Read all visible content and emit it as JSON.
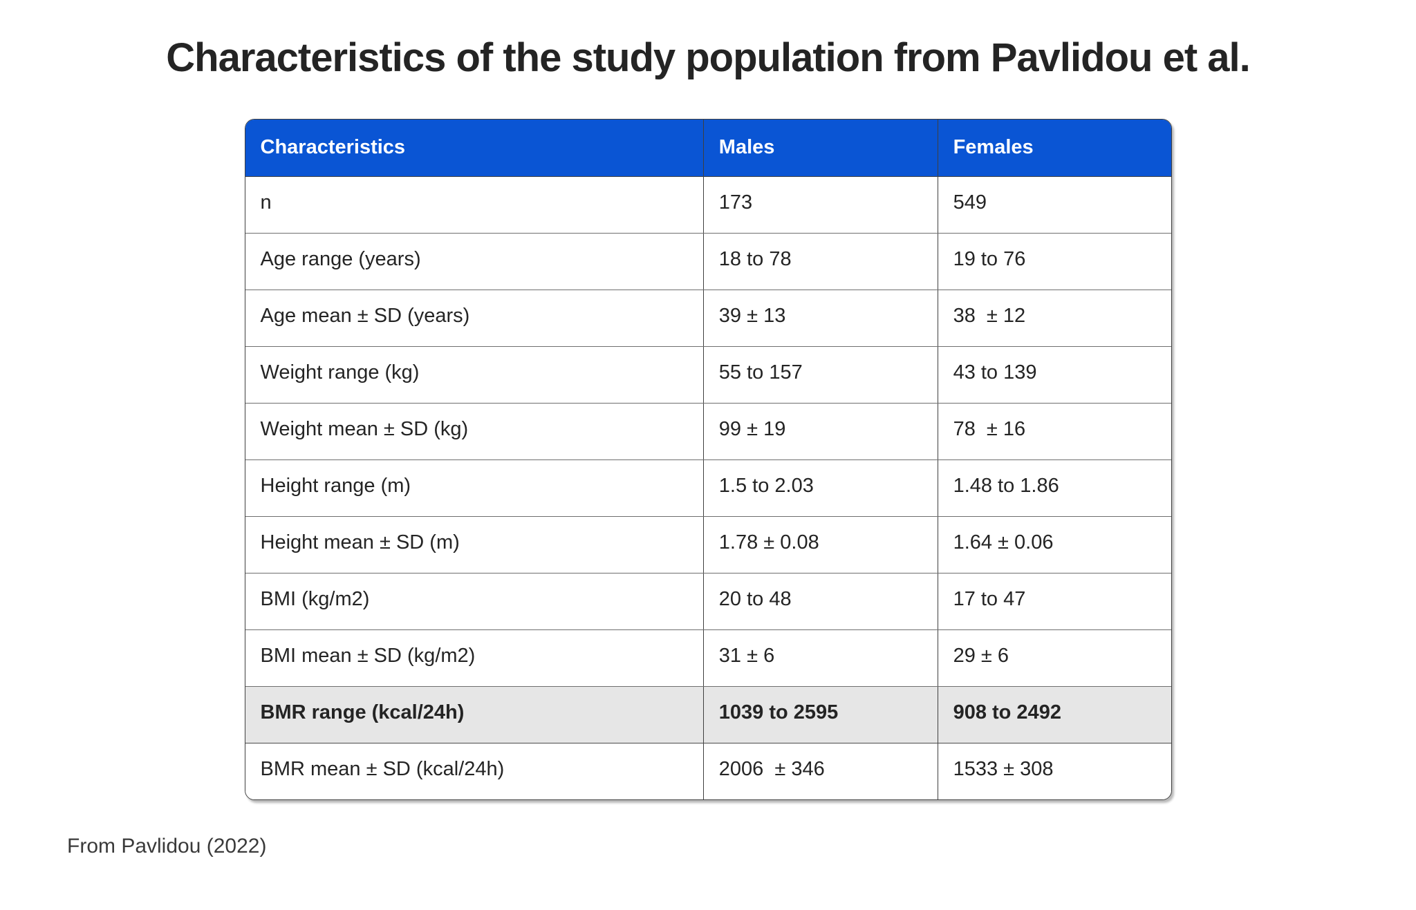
{
  "page": {
    "title": "Characteristics of the study population from Pavlidou et al.",
    "citation": "From Pavlidou (2022)"
  },
  "colors": {
    "header_bg": "#0a55d4",
    "header_text": "#ffffff",
    "highlight_row_bg": "#e6e6e6",
    "border_dark": "#3f3f3f",
    "border_light": "#6e6e6e",
    "text": "#242424"
  },
  "table": {
    "columns": [
      "Characteristics",
      "Males",
      "Females"
    ],
    "rows": [
      {
        "characteristic": "n",
        "males": "173",
        "females": "549",
        "highlight": false
      },
      {
        "characteristic": "Age range (years)",
        "males": "18 to 78",
        "females": "19 to 76",
        "highlight": false
      },
      {
        "characteristic": "Age mean ± SD (years)",
        "males": "39 ± 13",
        "females": "38  ± 12",
        "highlight": false
      },
      {
        "characteristic": "Weight range (kg)",
        "males": "55 to 157",
        "females": "43 to 139",
        "highlight": false
      },
      {
        "characteristic": "Weight mean ± SD (kg)",
        "males": "99 ± 19",
        "females": "78  ± 16",
        "highlight": false
      },
      {
        "characteristic": "Height range (m)",
        "males": "1.5 to 2.03",
        "females": "1.48 to 1.86",
        "highlight": false
      },
      {
        "characteristic": "Height mean ± SD (m)",
        "males": "1.78 ± 0.08",
        "females": "1.64 ± 0.06",
        "highlight": false
      },
      {
        "characteristic": "BMI (kg/m2)",
        "males": "20 to 48",
        "females": "17 to 47",
        "highlight": false
      },
      {
        "characteristic": "BMI mean ± SD (kg/m2)",
        "males": "31 ± 6",
        "females": "29 ± 6",
        "highlight": false
      },
      {
        "characteristic": "BMR range (kcal/24h)",
        "males": "1039 to 2595",
        "females": "908 to 2492",
        "highlight": true
      },
      {
        "characteristic": "BMR mean ± SD (kcal/24h)",
        "males": "2006  ± 346",
        "females": "1533 ± 308",
        "highlight": false
      }
    ]
  },
  "chart_data": {
    "type": "table",
    "title": "Characteristics of the study population from Pavlidou et al.",
    "columns": [
      "Characteristics",
      "Males",
      "Females"
    ],
    "rows": [
      [
        "n",
        "173",
        "549"
      ],
      [
        "Age range (years)",
        "18 to 78",
        "19 to 76"
      ],
      [
        "Age mean ± SD (years)",
        "39 ± 13",
        "38 ± 12"
      ],
      [
        "Weight range (kg)",
        "55 to 157",
        "43 to 139"
      ],
      [
        "Weight mean ± SD (kg)",
        "99 ± 19",
        "78 ± 16"
      ],
      [
        "Height range (m)",
        "1.5 to 2.03",
        "1.48 to 1.86"
      ],
      [
        "Height mean ± SD (m)",
        "1.78 ± 0.08",
        "1.64 ± 0.06"
      ],
      [
        "BMI (kg/m2)",
        "20 to 48",
        "17 to 47"
      ],
      [
        "BMI mean ± SD (kg/m2)",
        "31 ± 6",
        "29 ± 6"
      ],
      [
        "BMR range (kcal/24h)",
        "1039 to 2595",
        "908 to 2492"
      ],
      [
        "BMR mean ± SD (kcal/24h)",
        "2006 ± 346",
        "1533 ± 308"
      ]
    ],
    "highlighted_row": "BMR range (kcal/24h)",
    "source": "From Pavlidou (2022)"
  }
}
